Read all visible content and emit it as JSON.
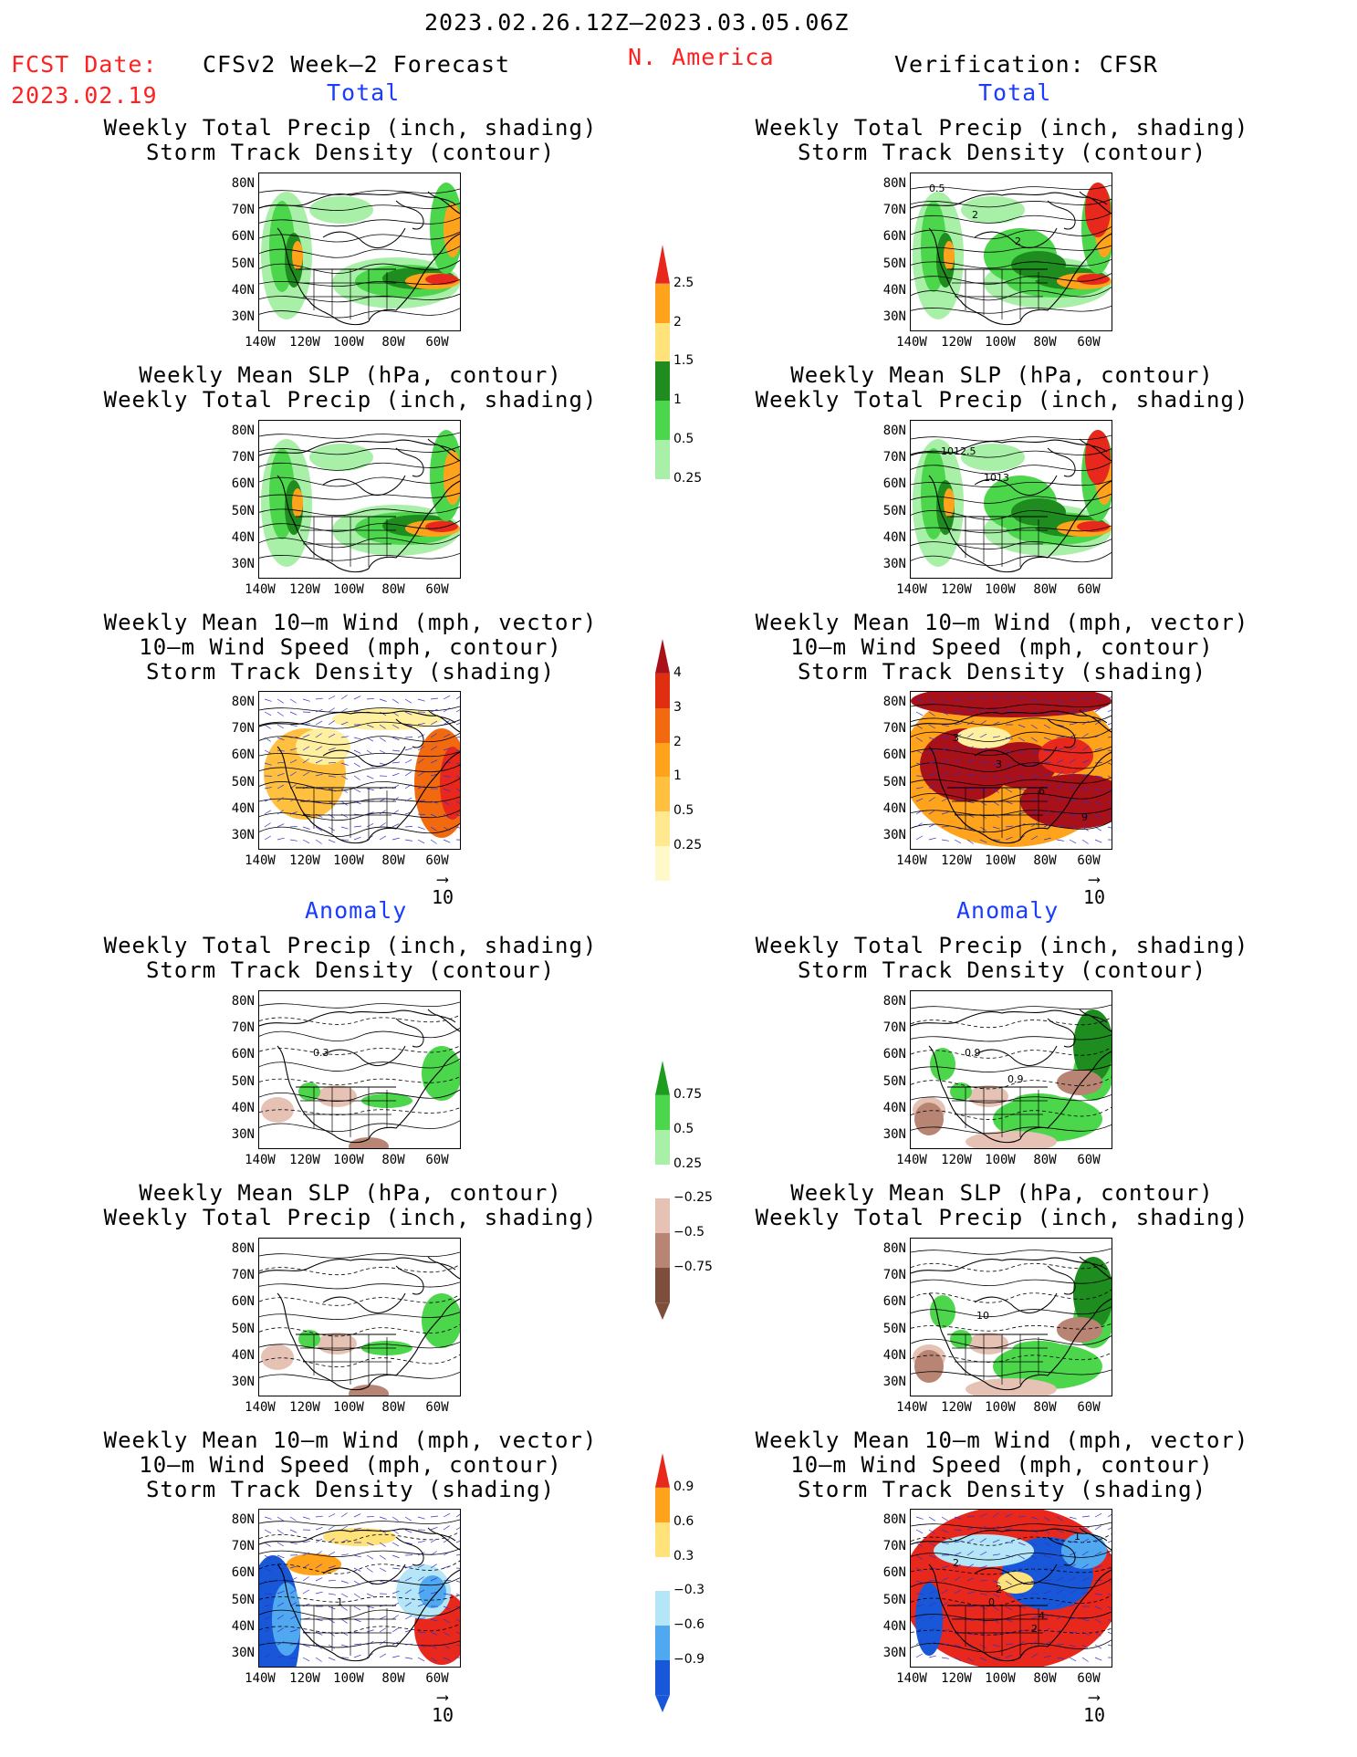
{
  "header": {
    "period": "2023.02.26.12Z–2023.03.05.06Z",
    "fcst_label": "FCST Date:",
    "fcst_date": "2023.02.19",
    "left_title": "CFSv2 Week–2 Forecast",
    "region": "N. America",
    "right_title": "Verification: CFSR"
  },
  "sections": {
    "total": "Total",
    "anomaly": "Anomaly"
  },
  "panel_titles": {
    "precip_track": [
      "Weekly Total Precip (inch, shading)",
      "Storm Track Density (contour)"
    ],
    "slp_precip": [
      "Weekly Mean SLP (hPa, contour)",
      "Weekly Total Precip (inch, shading)"
    ],
    "wind_track": [
      "Weekly Mean 10–m Wind (mph, vector)",
      "10–m Wind Speed (mph, contour)",
      "Storm Track Density (shading)"
    ]
  },
  "axes": {
    "lat_labels": [
      "80N",
      "70N",
      "60N",
      "50N",
      "40N",
      "30N"
    ],
    "lon_labels": [
      "140W",
      "120W",
      "100W",
      "80W",
      "60W"
    ]
  },
  "vector_ref": "10",
  "contour_labels": {
    "r1": [
      "0.5",
      "2",
      "2"
    ],
    "r2": [
      "1012.5",
      "1013"
    ],
    "r3": [
      "3",
      "3",
      "6",
      "9"
    ],
    "l4": [
      "0.3"
    ],
    "r4": [
      "0.9",
      "0.9"
    ],
    "r5": [
      "10"
    ],
    "l6": [
      "1"
    ],
    "r6": [
      "0",
      "2",
      "1",
      "2",
      "2",
      "4"
    ]
  },
  "colorbars": {
    "precip_total": {
      "labels": [
        "2.5",
        "2",
        "1.5",
        "1",
        "0.5",
        "0.25"
      ],
      "colors": [
        "#e8281c",
        "#ffa21c",
        "#ffe27a",
        "#1e8c1e",
        "#4cd64c",
        "#a8f0a8"
      ]
    },
    "track_total": {
      "labels": [
        "4",
        "3",
        "2",
        "1",
        "0.5",
        "0.25"
      ],
      "colors": [
        "#a8101a",
        "#e02e10",
        "#f26a10",
        "#ffa21c",
        "#ffc040",
        "#ffe890",
        "#fff8c8"
      ]
    },
    "precip_anom": {
      "labels": [
        "0.75",
        "0.5",
        "0.25",
        "−0.25",
        "−0.5",
        "−0.75"
      ],
      "colors": [
        "#1e9c1e",
        "#4cd64c",
        "#a8f0a8",
        "#ffffff",
        "#e6c2b4",
        "#b88474",
        "#7e4e3c"
      ]
    },
    "track_anom": {
      "labels": [
        "0.9",
        "0.6",
        "0.3",
        "−0.3",
        "−0.6",
        "−0.9"
      ],
      "colors": [
        "#e8281c",
        "#ffa21c",
        "#ffe27a",
        "#ffffff",
        "#b4e6f8",
        "#50a8f0",
        "#1858d8"
      ]
    }
  }
}
